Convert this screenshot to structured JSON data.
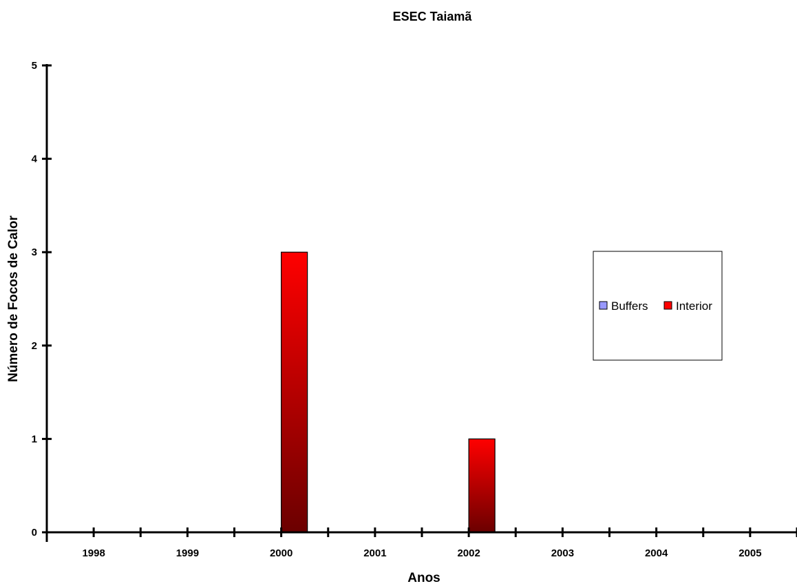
{
  "chart_data": {
    "type": "bar",
    "title": "ESEC Taiamã",
    "xlabel": "Anos",
    "ylabel": "Número de Focos de Calor",
    "categories": [
      "1998",
      "1999",
      "2000",
      "2001",
      "2002",
      "2003",
      "2004",
      "2005"
    ],
    "series": [
      {
        "name": "Buffers",
        "values": [
          0,
          0,
          0,
          0,
          0,
          0,
          0,
          0
        ],
        "color": "#9999ff"
      },
      {
        "name": "Interior",
        "values": [
          0,
          0,
          3,
          0,
          1,
          0,
          0,
          0
        ],
        "color": "#ff0000",
        "gradient_end": "#6b0000"
      }
    ],
    "ylim": [
      0,
      5
    ],
    "yticks": [
      0,
      1,
      2,
      3,
      4,
      5
    ],
    "grid": false,
    "legend_position": "right"
  }
}
